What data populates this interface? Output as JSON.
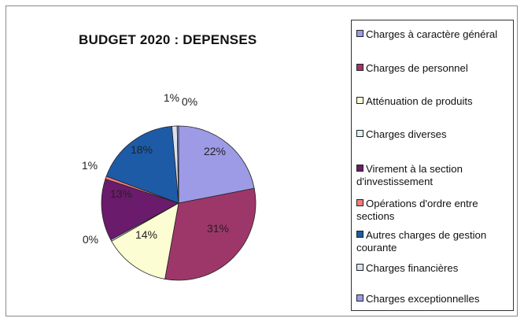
{
  "chart_data": {
    "type": "pie",
    "title": "BUDGET 2020 : DEPENSES",
    "legend_placement": "right",
    "slices": [
      {
        "name": "Charges à caractère général",
        "value": 22,
        "label": "22%",
        "color": "#9d9be6"
      },
      {
        "name": "Charges de personnel",
        "value": 31,
        "label": "31%",
        "color": "#9e3769"
      },
      {
        "name": "Atténuation de produits",
        "value": 14,
        "label": "14%",
        "color": "#fdfdd3"
      },
      {
        "name": "Charges diverses",
        "value": 0.3,
        "label": "0%",
        "color": "#dcf3f8"
      },
      {
        "name": "Virement à la section d'investissement",
        "value": 13,
        "label": "13%",
        "color": "#6b1b6b"
      },
      {
        "name": "Opérations d'ordre entre sections",
        "value": 0.6,
        "label": "1%",
        "color": "#f57c7c"
      },
      {
        "name": "Autres charges de gestion courante",
        "value": 18,
        "label": "18%",
        "color": "#1d5ba7"
      },
      {
        "name": "Charges financières",
        "value": 1.1,
        "label": "1%",
        "color": "#d9e2f1"
      },
      {
        "name": "Charges exceptionnelles",
        "value": 0.3,
        "label": "0%",
        "color": "#9d9be6"
      }
    ]
  }
}
